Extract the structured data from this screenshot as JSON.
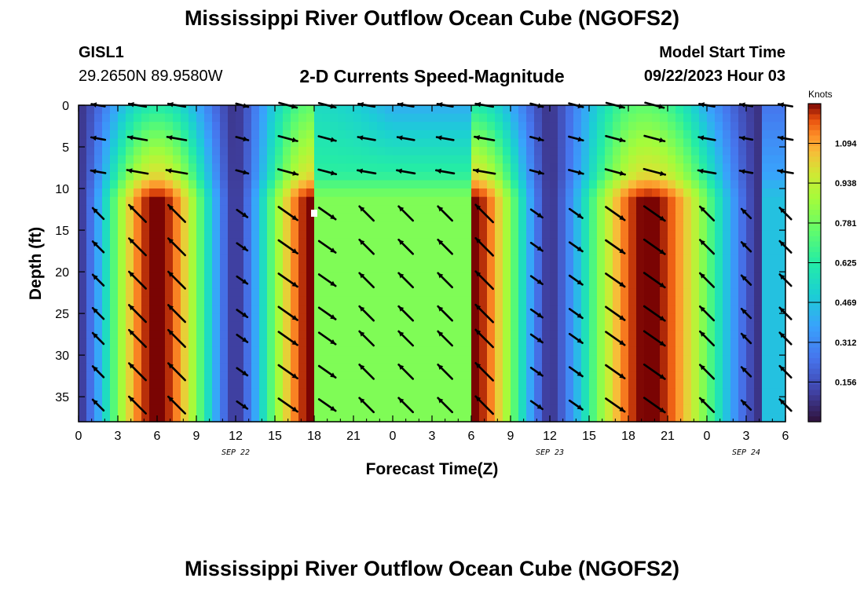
{
  "header": {
    "title": "Mississippi River Outflow Ocean Cube (NGOFS2)",
    "station_id": "GISL1",
    "station_coords": "29.2650N  89.9580W",
    "subtitle": "2-D Currents Speed-Magnitude",
    "model_start_label": "Model Start Time",
    "model_start_value": "09/22/2023 Hour 03"
  },
  "footer": {
    "title": "Mississippi River Outflow Ocean Cube (NGOFS2)"
  },
  "chart_data": {
    "type": "heatmap",
    "xlabel": "Forecast Time(Z)",
    "ylabel": "Depth (ft)",
    "xlim": [
      0,
      54
    ],
    "ylim": [
      38,
      0
    ],
    "x_ticks": [
      0,
      3,
      6,
      9,
      12,
      15,
      18,
      21,
      24,
      27,
      30,
      33,
      36,
      39,
      42,
      45,
      48,
      51,
      54
    ],
    "x_tick_labels": [
      "0",
      "3",
      "6",
      "9",
      "12",
      "15",
      "18",
      "21",
      "0",
      "3",
      "6",
      "9",
      "12",
      "15",
      "18",
      "21",
      "0",
      "3",
      "6"
    ],
    "y_ticks": [
      0,
      5,
      10,
      15,
      20,
      25,
      30,
      35
    ],
    "y_tick_labels": [
      "0",
      "5",
      "10",
      "15",
      "20",
      "25",
      "30",
      "35"
    ],
    "date_labels": [
      {
        "x": 12,
        "text": "SEP 22"
      },
      {
        "x": 36,
        "text": "SEP 23"
      },
      {
        "x": 51,
        "text": "SEP 24"
      }
    ],
    "colorbar": {
      "label": "Knots",
      "min": 0,
      "max": 1.25,
      "ticks": [
        0.156,
        0.312,
        0.469,
        0.625,
        0.781,
        0.938,
        1.094
      ],
      "tick_labels": [
        "0.156",
        "0.312",
        "0.469",
        "0.625",
        "0.781",
        "0.938",
        "1.094"
      ]
    },
    "speed_maxima": [
      {
        "time": 6,
        "speed": 1.15
      },
      {
        "time": 18,
        "speed": 1.2
      },
      {
        "time": 30,
        "speed": 1.2
      },
      {
        "time": 43.5,
        "speed": 1.2
      }
    ],
    "speed_minima": [
      {
        "time": 0,
        "speed": 0.1
      },
      {
        "time": 12,
        "speed": 0.05
      },
      {
        "time": 36,
        "speed": 0.12
      },
      {
        "time": 52,
        "speed": 0.2
      }
    ],
    "vector_rows_depth": [
      0,
      4,
      8,
      13,
      17,
      21,
      25,
      28,
      32,
      36
    ],
    "vector_columns_time": [
      1.5,
      4.5,
      7.5,
      12.5,
      16,
      19,
      22,
      25,
      28,
      31,
      35,
      38,
      41,
      44,
      48,
      51,
      54
    ]
  }
}
